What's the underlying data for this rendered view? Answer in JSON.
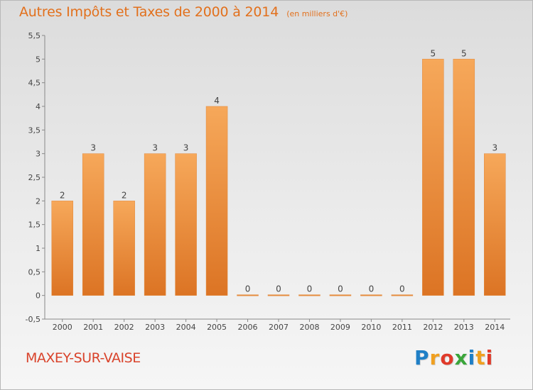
{
  "title": "Autres Impôts et Taxes de 2000 à 2014",
  "subtitle": "(en milliers d'€)",
  "town": "MAXEY-SUR-VAISE",
  "logo": {
    "text": "Proxiti",
    "letters": [
      {
        "ch": "P",
        "color": "#1f7fc6"
      },
      {
        "ch": "r",
        "color": "#f0a020"
      },
      {
        "ch": "o",
        "color": "#e03a2a"
      },
      {
        "ch": "x",
        "color": "#3aa53a"
      },
      {
        "ch": "i",
        "color": "#1f7fc6"
      },
      {
        "ch": "t",
        "color": "#f0a020"
      },
      {
        "ch": "i",
        "color": "#e03a2a"
      }
    ]
  },
  "colors": {
    "bar_top": "#f6a85a",
    "bar_bottom": "#dc7424",
    "axis": "#888888",
    "text": "#444444",
    "title": "#e2701c"
  },
  "chart_data": {
    "type": "bar",
    "categories": [
      "2000",
      "2001",
      "2002",
      "2003",
      "2004",
      "2005",
      "2006",
      "2007",
      "2008",
      "2009",
      "2010",
      "2011",
      "2012",
      "2013",
      "2014"
    ],
    "values": [
      2,
      3,
      2,
      3,
      3,
      4,
      0,
      0,
      0,
      0,
      0,
      0,
      5,
      5,
      3
    ],
    "data_labels": [
      "2",
      "3",
      "2",
      "3",
      "3",
      "4",
      "0",
      "0",
      "0",
      "0",
      "0",
      "0",
      "5",
      "5",
      "3"
    ],
    "y_ticks": [
      -0.5,
      0,
      0.5,
      1,
      1.5,
      2,
      2.5,
      3,
      3.5,
      4,
      4.5,
      5,
      5.5
    ],
    "y_tick_labels": [
      "-0,5",
      "0",
      "0,5",
      "1",
      "1,5",
      "2",
      "2,5",
      "3",
      "3,5",
      "4",
      "4,5",
      "5",
      "5,5"
    ],
    "ylim": [
      -0.5,
      5.5
    ],
    "grid": false,
    "legend": "none"
  }
}
